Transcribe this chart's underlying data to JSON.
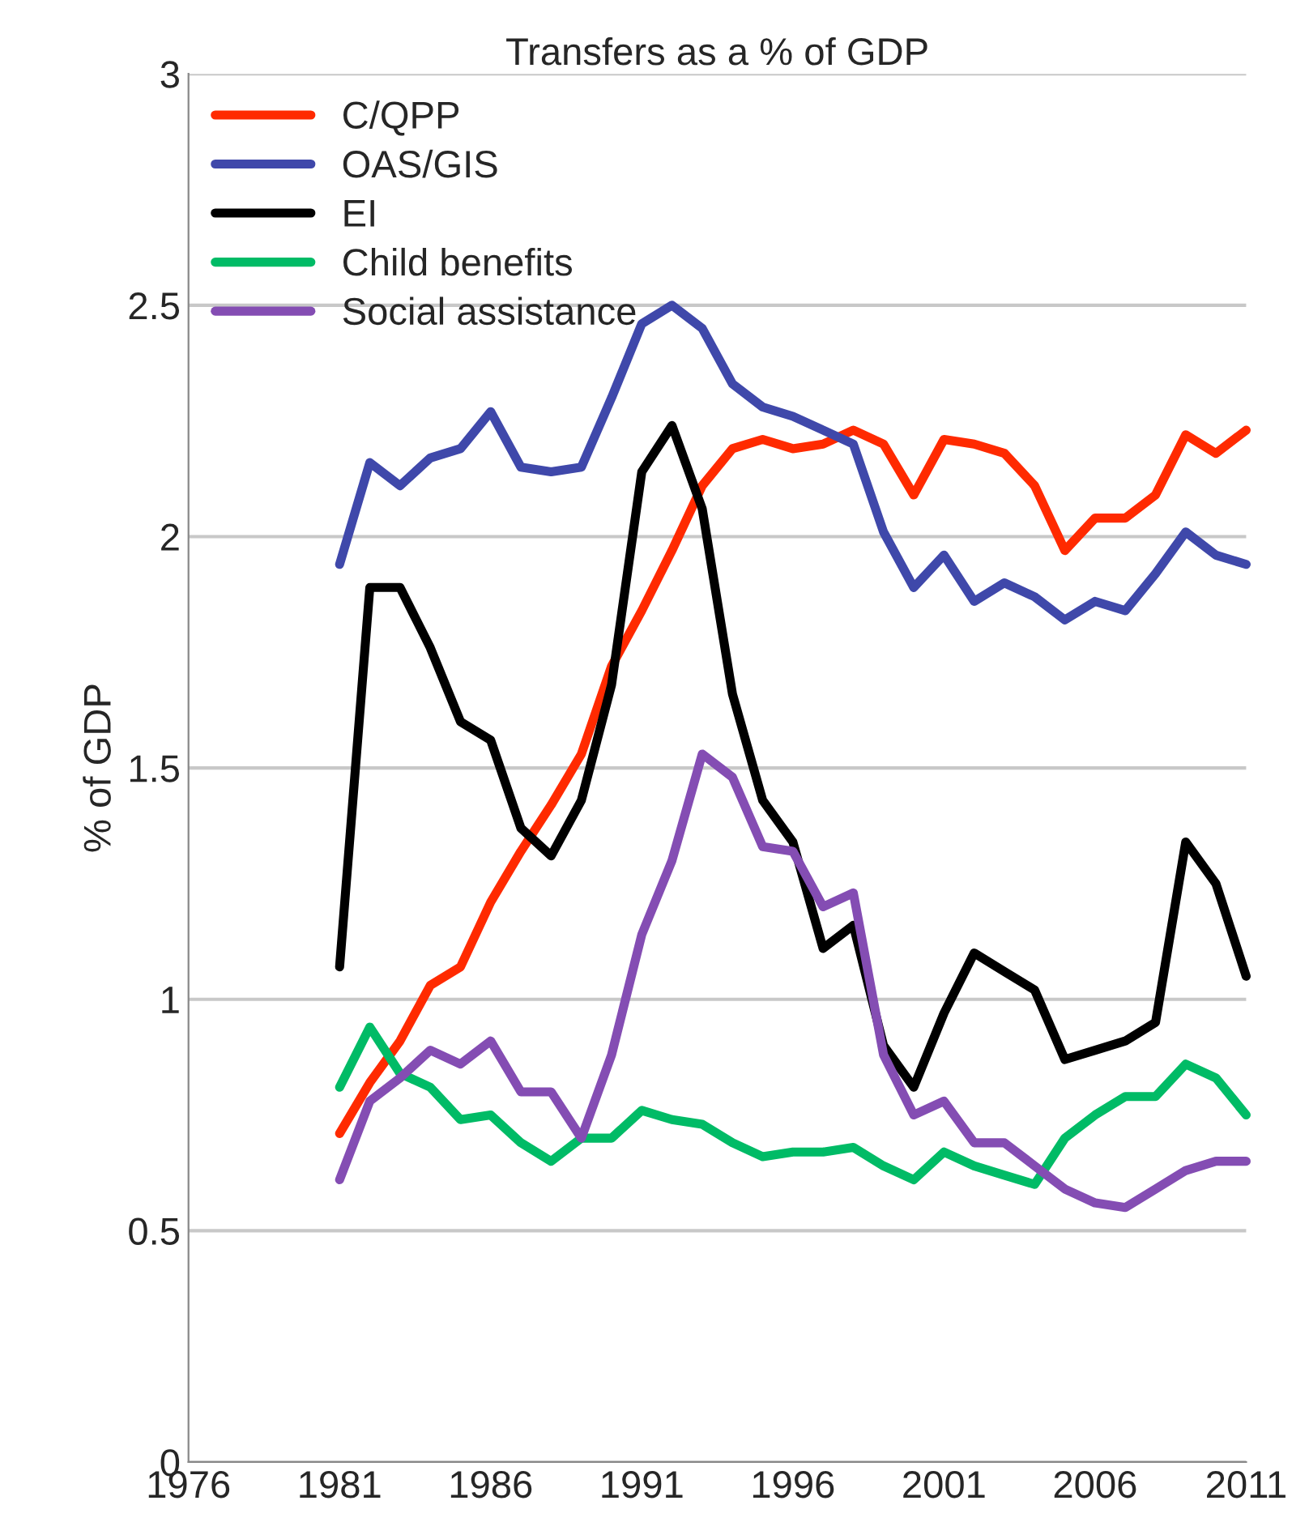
{
  "chart_data": {
    "type": "line",
    "title": "Transfers as a % of GDP",
    "ylabel": "% of GDP",
    "x": [
      1981,
      1982,
      1983,
      1984,
      1985,
      1986,
      1987,
      1988,
      1989,
      1990,
      1991,
      1992,
      1993,
      1994,
      1995,
      1996,
      1997,
      1998,
      1999,
      2000,
      2001,
      2002,
      2003,
      2004,
      2005,
      2006,
      2007,
      2008,
      2009,
      2010,
      2011
    ],
    "series": [
      {
        "name": "C/QPP",
        "color": "#ff2a00",
        "values": [
          0.71,
          0.82,
          0.91,
          1.03,
          1.07,
          1.21,
          1.32,
          1.42,
          1.53,
          1.72,
          1.84,
          1.97,
          2.11,
          2.19,
          2.21,
          2.19,
          2.2,
          2.23,
          2.2,
          2.09,
          2.21,
          2.2,
          2.18,
          2.11,
          1.97,
          2.04,
          2.04,
          2.09,
          2.22,
          2.18,
          2.23
        ]
      },
      {
        "name": "OAS/GIS",
        "color": "#3f48aa",
        "values": [
          1.94,
          2.16,
          2.11,
          2.17,
          2.19,
          2.27,
          2.15,
          2.14,
          2.15,
          2.3,
          2.46,
          2.5,
          2.45,
          2.33,
          2.28,
          2.26,
          2.23,
          2.2,
          2.01,
          1.89,
          1.96,
          1.86,
          1.9,
          1.87,
          1.82,
          1.86,
          1.84,
          1.92,
          2.01,
          1.96,
          1.94
        ]
      },
      {
        "name": "EI",
        "color": "#000000",
        "values": [
          1.07,
          1.89,
          1.89,
          1.76,
          1.6,
          1.56,
          1.37,
          1.31,
          1.43,
          1.68,
          2.14,
          2.24,
          2.06,
          1.66,
          1.43,
          1.34,
          1.11,
          1.16,
          0.9,
          0.81,
          0.97,
          1.1,
          1.06,
          1.02,
          0.87,
          0.89,
          0.91,
          0.95,
          1.34,
          1.25,
          1.05
        ]
      },
      {
        "name": "Child benefits",
        "color": "#00bb66",
        "values": [
          0.81,
          0.94,
          0.84,
          0.81,
          0.74,
          0.75,
          0.69,
          0.65,
          0.7,
          0.7,
          0.76,
          0.74,
          0.73,
          0.69,
          0.66,
          0.67,
          0.67,
          0.68,
          0.64,
          0.61,
          0.67,
          0.64,
          0.62,
          0.6,
          0.7,
          0.75,
          0.79,
          0.79,
          0.86,
          0.83,
          0.75
        ]
      },
      {
        "name": "Social assistance",
        "color": "#844db3",
        "values": [
          0.61,
          0.78,
          0.83,
          0.89,
          0.86,
          0.91,
          0.8,
          0.8,
          0.7,
          0.88,
          1.14,
          1.3,
          1.53,
          1.48,
          1.33,
          1.32,
          1.2,
          1.23,
          0.88,
          0.75,
          0.78,
          0.69,
          0.69,
          0.64,
          0.59,
          0.56,
          0.55,
          0.59,
          0.63,
          0.65,
          0.65
        ]
      }
    ],
    "xlim": [
      1976,
      2011
    ],
    "xticks": [
      1976,
      1981,
      1986,
      1991,
      1996,
      2001,
      2006,
      2011
    ],
    "ylim": [
      0,
      3
    ],
    "yticks": [
      0,
      0.5,
      1,
      1.5,
      2,
      2.5,
      3
    ],
    "grid": "y",
    "legend": "top left",
    "marker": "none",
    "line_style": "solid"
  }
}
